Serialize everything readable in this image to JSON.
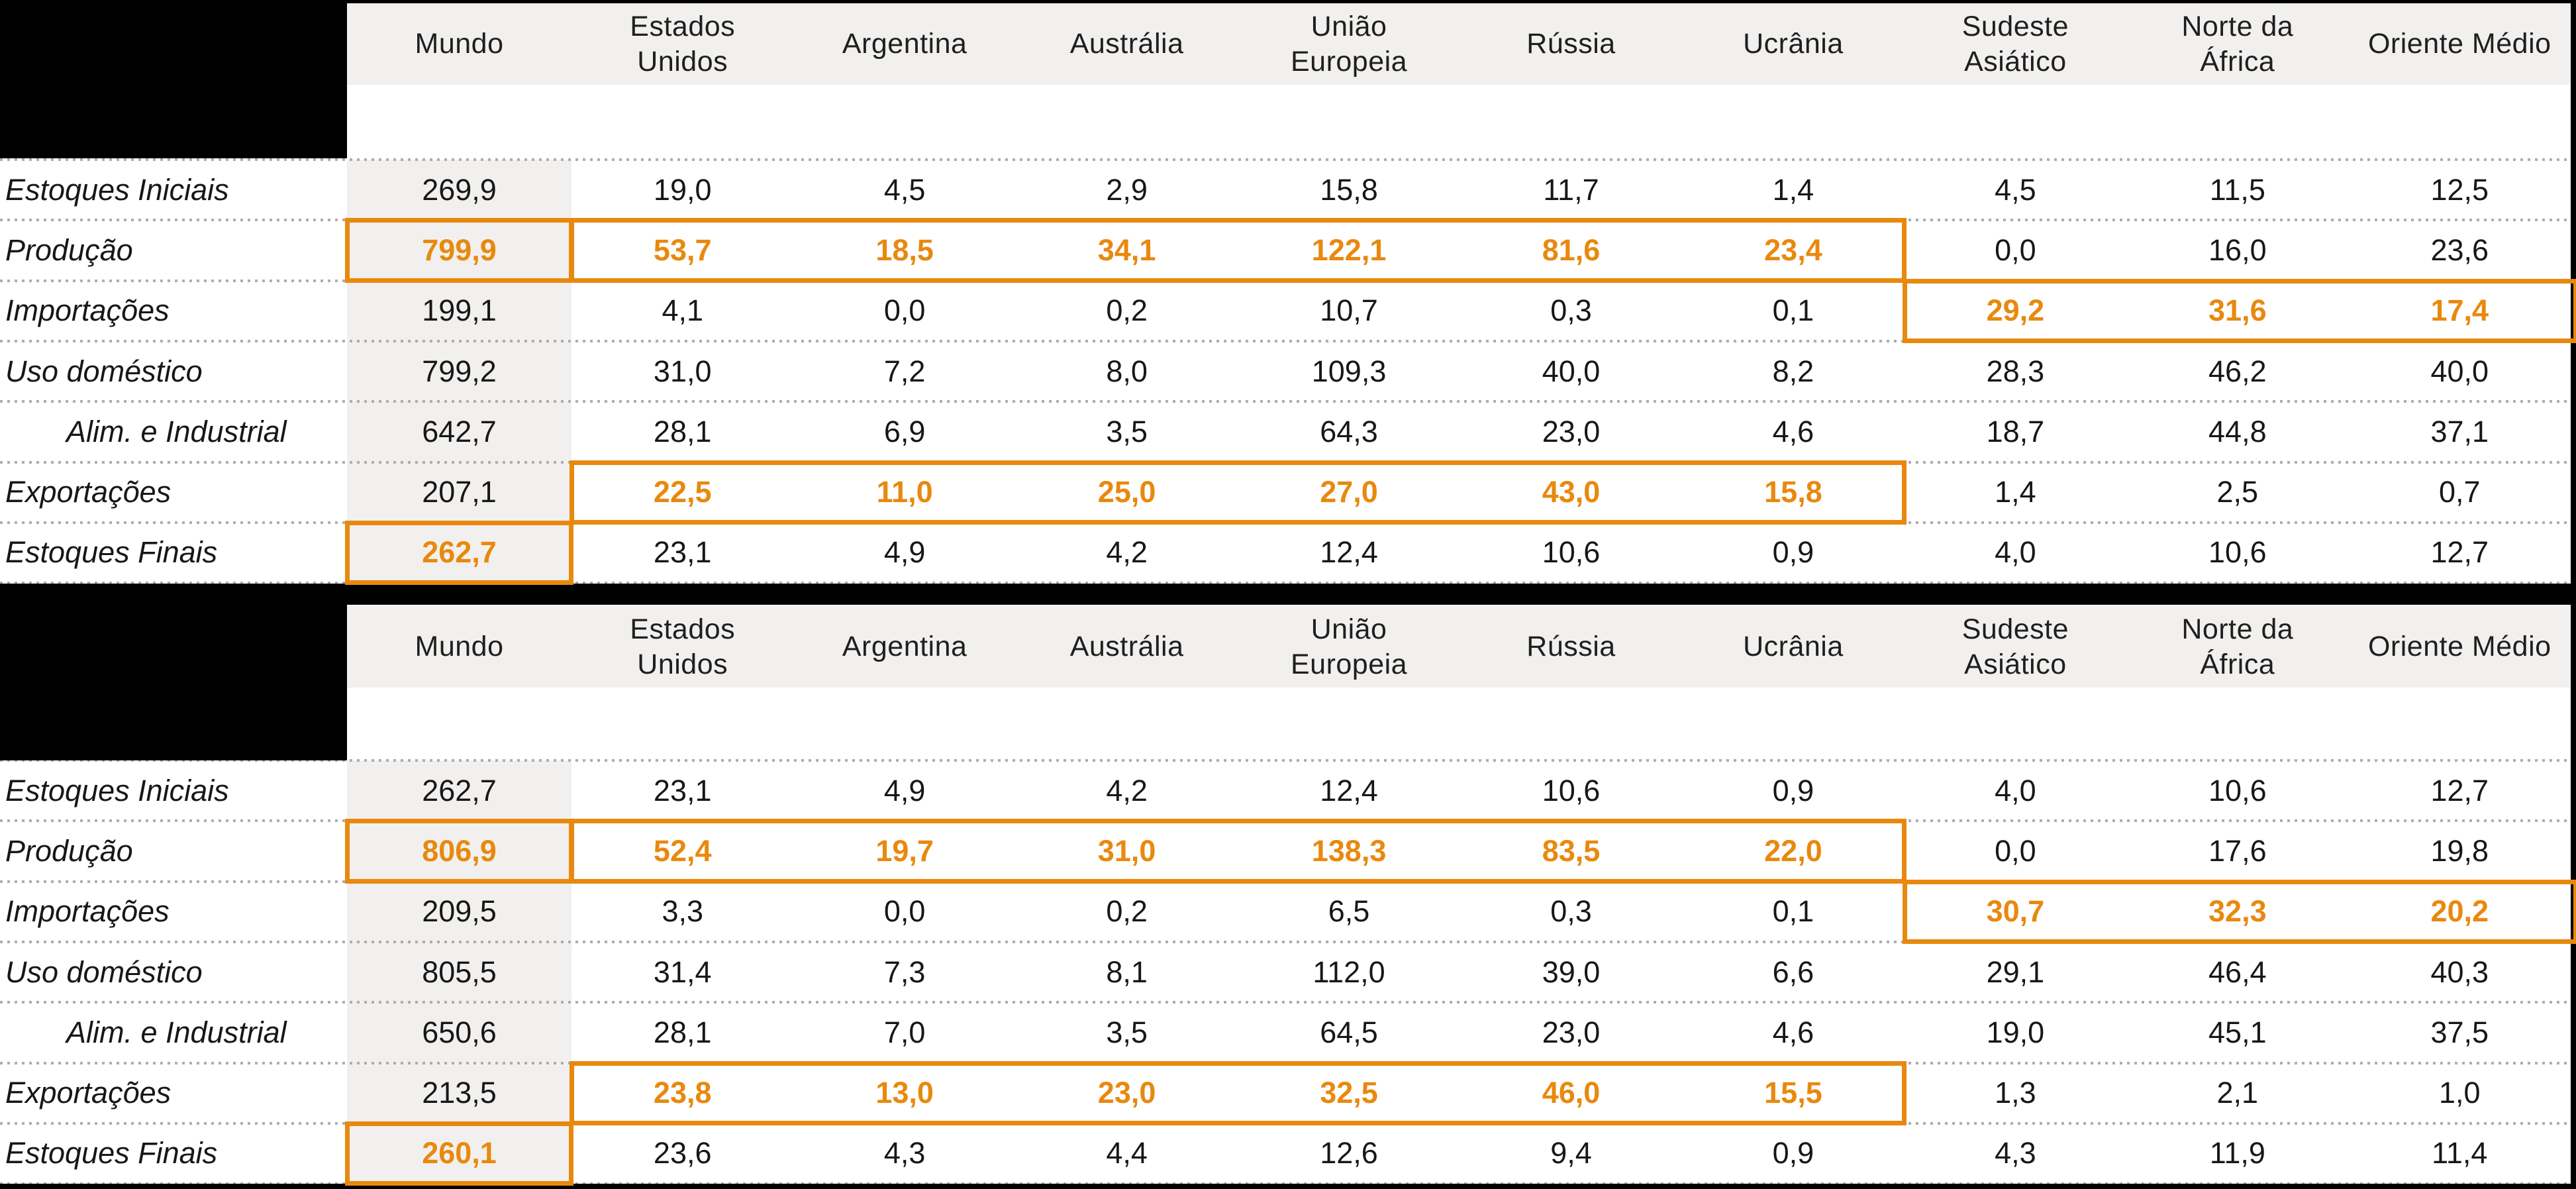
{
  "palette": {
    "orange": "#E8890E",
    "header_band_gray": "#F1F0EE",
    "dotted_line_gray": "#ADADAD",
    "text_black": "#171717",
    "block_black": "#000000"
  },
  "chart_data": [
    {
      "type": "table",
      "title": "",
      "columns": [
        "Mundo",
        "Estados\nUnidos",
        "Argentina",
        "Austrália",
        "União\nEuropeia",
        "Rússia",
        "Ucrânia",
        "Sudeste\nAsiático",
        "Norte da\nÁfrica",
        "Oriente Médio"
      ],
      "rows": [
        {
          "label": "Estoques Iniciais",
          "indent": false,
          "highlight": [],
          "values": [
            "269,9",
            "19,0",
            "4,5",
            "2,9",
            "15,8",
            "11,7",
            "1,4",
            "4,5",
            "11,5",
            "12,5"
          ]
        },
        {
          "label": "Produção",
          "indent": false,
          "highlight": [
            0,
            1,
            2,
            3,
            4,
            5,
            6
          ],
          "values": [
            "799,9",
            "53,7",
            "18,5",
            "34,1",
            "122,1",
            "81,6",
            "23,4",
            "0,0",
            "16,0",
            "23,6"
          ]
        },
        {
          "label": "Importações",
          "indent": false,
          "highlight": [
            7,
            8,
            9
          ],
          "values": [
            "199,1",
            "4,1",
            "0,0",
            "0,2",
            "10,7",
            "0,3",
            "0,1",
            "29,2",
            "31,6",
            "17,4"
          ]
        },
        {
          "label": "Uso doméstico",
          "indent": false,
          "highlight": [],
          "values": [
            "799,2",
            "31,0",
            "7,2",
            "8,0",
            "109,3",
            "40,0",
            "8,2",
            "28,3",
            "46,2",
            "40,0"
          ]
        },
        {
          "label": "Alim. e Industrial",
          "indent": true,
          "highlight": [],
          "values": [
            "642,7",
            "28,1",
            "6,9",
            "3,5",
            "64,3",
            "23,0",
            "4,6",
            "18,7",
            "44,8",
            "37,1"
          ]
        },
        {
          "label": "Exportações",
          "indent": false,
          "highlight": [
            1,
            2,
            3,
            4,
            5,
            6
          ],
          "values": [
            "207,1",
            "22,5",
            "11,0",
            "25,0",
            "27,0",
            "43,0",
            "15,8",
            "1,4",
            "2,5",
            "0,7"
          ]
        },
        {
          "label": "Estoques Finais",
          "indent": false,
          "highlight": [
            0
          ],
          "values": [
            "262,7",
            "23,1",
            "4,9",
            "4,2",
            "12,4",
            "10,6",
            "0,9",
            "4,0",
            "10,6",
            "12,7"
          ]
        }
      ]
    },
    {
      "type": "table",
      "title": "",
      "columns": [
        "Mundo",
        "Estados\nUnidos",
        "Argentina",
        "Austrália",
        "União\nEuropeia",
        "Rússia",
        "Ucrânia",
        "Sudeste\nAsiático",
        "Norte da\nÁfrica",
        "Oriente Médio"
      ],
      "rows": [
        {
          "label": "Estoques Iniciais",
          "indent": false,
          "highlight": [],
          "values": [
            "262,7",
            "23,1",
            "4,9",
            "4,2",
            "12,4",
            "10,6",
            "0,9",
            "4,0",
            "10,6",
            "12,7"
          ]
        },
        {
          "label": "Produção",
          "indent": false,
          "highlight": [
            0,
            1,
            2,
            3,
            4,
            5,
            6
          ],
          "values": [
            "806,9",
            "52,4",
            "19,7",
            "31,0",
            "138,3",
            "83,5",
            "22,0",
            "0,0",
            "17,6",
            "19,8"
          ]
        },
        {
          "label": "Importações",
          "indent": false,
          "highlight": [
            7,
            8,
            9
          ],
          "values": [
            "209,5",
            "3,3",
            "0,0",
            "0,2",
            "6,5",
            "0,3",
            "0,1",
            "30,7",
            "32,3",
            "20,2"
          ]
        },
        {
          "label": "Uso doméstico",
          "indent": false,
          "highlight": [],
          "values": [
            "805,5",
            "31,4",
            "7,3",
            "8,1",
            "112,0",
            "39,0",
            "6,6",
            "29,1",
            "46,4",
            "40,3"
          ]
        },
        {
          "label": "Alim. e Industrial",
          "indent": true,
          "highlight": [],
          "values": [
            "650,6",
            "28,1",
            "7,0",
            "3,5",
            "64,5",
            "23,0",
            "4,6",
            "19,0",
            "45,1",
            "37,5"
          ]
        },
        {
          "label": "Exportações",
          "indent": false,
          "highlight": [
            1,
            2,
            3,
            4,
            5,
            6
          ],
          "values": [
            "213,5",
            "23,8",
            "13,0",
            "23,0",
            "32,5",
            "46,0",
            "15,5",
            "1,3",
            "2,1",
            "1,0"
          ]
        },
        {
          "label": "Estoques Finais",
          "indent": false,
          "highlight": [
            0
          ],
          "values": [
            "260,1",
            "23,6",
            "4,3",
            "4,4",
            "12,6",
            "9,4",
            "0,9",
            "4,3",
            "11,9",
            "11,4"
          ]
        }
      ]
    }
  ]
}
